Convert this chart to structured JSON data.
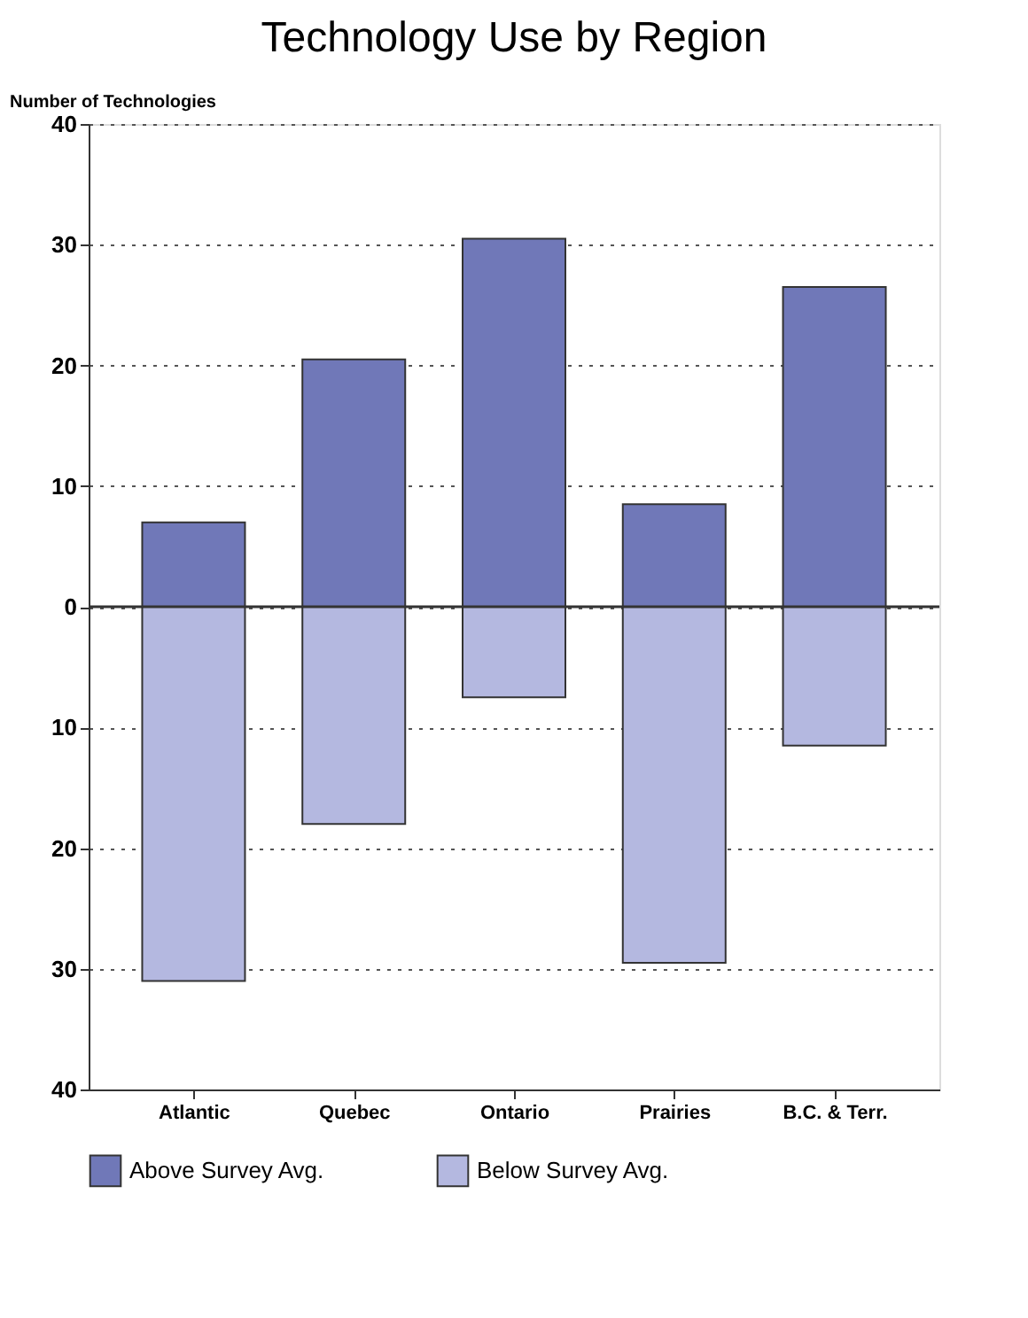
{
  "chart_data": {
    "type": "bar",
    "title": "Technology Use by Region",
    "ylabel": "Number of Technologies",
    "categories": [
      "Atlantic",
      "Quebec",
      "Ontario",
      "Prairies",
      "B.C. & Terr."
    ],
    "stacked": true,
    "series": [
      {
        "name": "Above Survey Avg.",
        "color": "#7078b8",
        "values": [
          7,
          20.5,
          30.5,
          8.5,
          26.5
        ]
      },
      {
        "name": "Below Survey Avg.",
        "color": "#b4b8e0",
        "values": [
          -31,
          -18,
          -7.5,
          -29.5,
          -11.5
        ]
      }
    ],
    "ylim": [
      -40,
      40
    ],
    "yticks": [
      {
        "value": -40,
        "label": "40"
      },
      {
        "value": -30,
        "label": "30"
      },
      {
        "value": -20,
        "label": "20"
      },
      {
        "value": -10,
        "label": "10"
      },
      0,
      10,
      20,
      30,
      40
    ],
    "grid": "y",
    "legend": "bottom",
    "ref_lines": [
      {
        "axis": "y",
        "value": 0,
        "color": "#333333"
      }
    ]
  }
}
